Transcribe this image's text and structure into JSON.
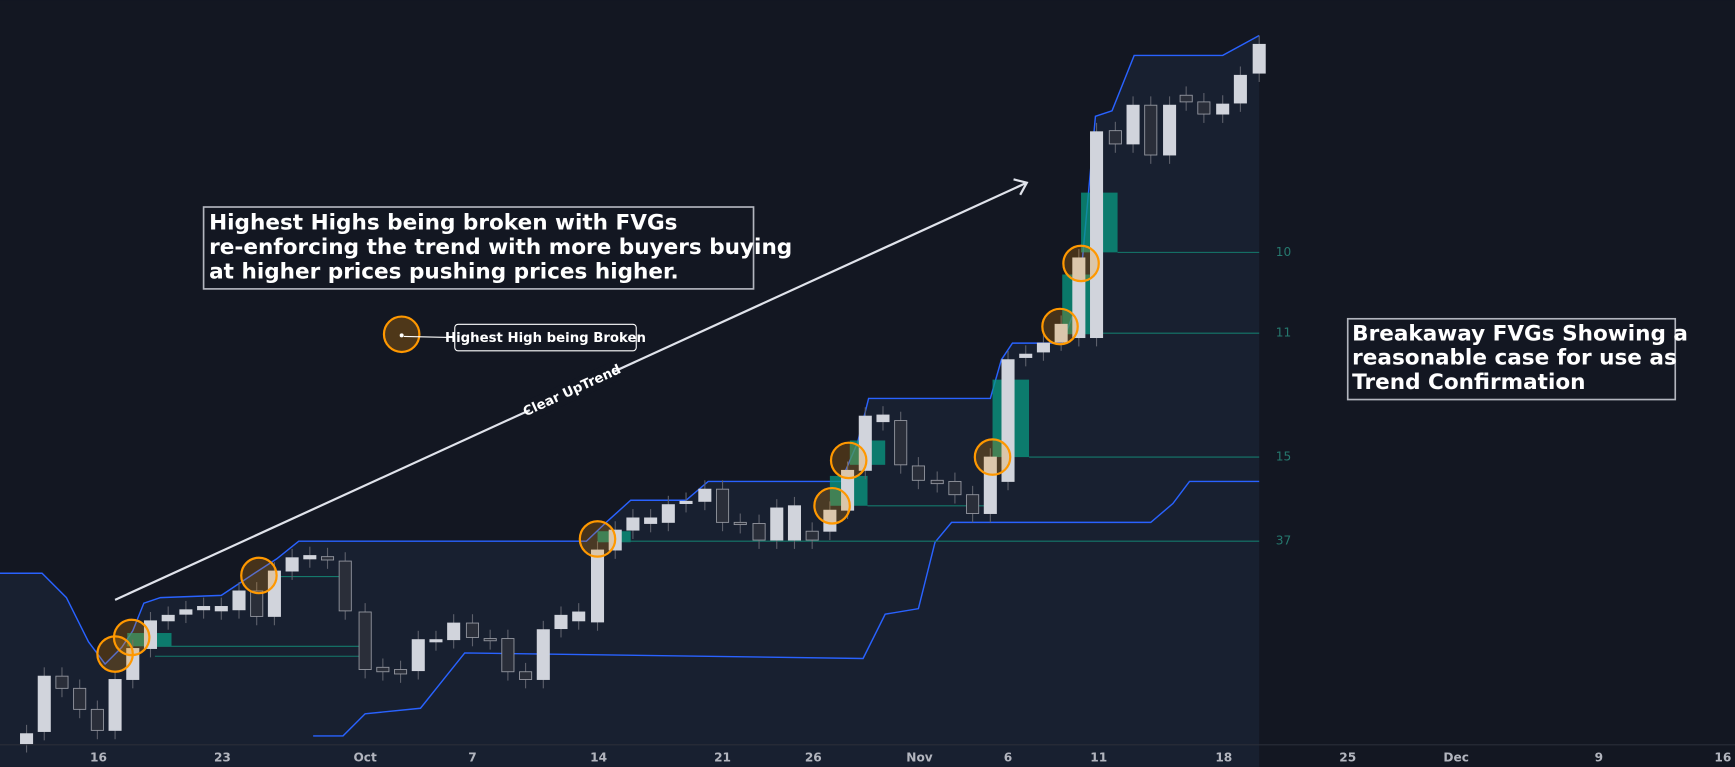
{
  "annotations": {
    "main_note": [
      "Highest Highs being broken with FVGs",
      "re-enforcing the trend with more buyers buying",
      "at higher prices pushing prices higher."
    ],
    "side_note": [
      "Breakaway FVGs Showing a",
      "reasonable case for use as",
      "Trend Confirmation"
    ],
    "legend_label": "Highest High being Broken",
    "trend_label": "Clear UpTrend"
  },
  "level_labels": [
    "10",
    "11",
    "15",
    "37"
  ],
  "x_axis_labels": [
    "16",
    "23",
    "Oct",
    "7",
    "14",
    "21",
    "26",
    "Nov",
    "6",
    "11",
    "18",
    "25",
    "Dec",
    "9",
    "16"
  ]
}
